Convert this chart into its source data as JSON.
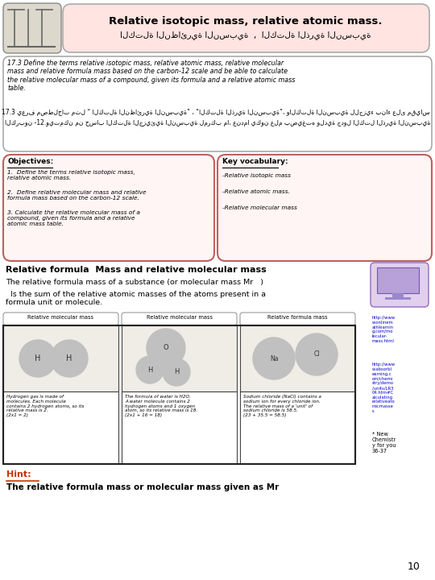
{
  "bg_color": "#ffffff",
  "title_box_bg": "#ffe4e1",
  "title_text": "Relative isotopic mass, relative atomic mass.",
  "title_arabic": "الكتلة النظائرية النسبية  ,  الكتلة الذرية النسبية",
  "define_text_en": "17.3 Define the terms relative isotopic mass, relative atomic mass, relative molecular\nmass and relative formula mass based on the carbon-12 scale and be able to calculate\nthe relative molecular mass of a compound, given its formula and a relative atomic mass\ntable.",
  "define_text_ar": "17.3 يعرف مصطلحات مثل “ الكتلة النظائرية النسبية” ، “الكتلة الذرية النسبية”، والكتلة النسبية للجزيء بناء على مقياس",
  "define_text_ar2": "الكربون -12.ويتمكن من حساب الكتلة الجزيئية النسبية لمركب ما، عندما يكون علم بصيغته ولدية جدول الكتل الذرية النسبية",
  "obj_box_bg": "#fff5f5",
  "obj_box_border": "#c06060",
  "obj_title": "Objectives:",
  "obj_items": [
    "1.  Define the terms relative isotopic mass,\nrelative atomic mass.",
    "2.  Define relative molecular mass and relative\nformula mass based on the carbon-12 scale.",
    "3. Calculate the relative molecular mass of a\ncompound, given its formula and a relative\natomic mass table."
  ],
  "key_title": "Key vocabulary:",
  "key_items": [
    "-Relative isotopic mass",
    "-Relative atomic mass.",
    "-Relative molecular mass"
  ],
  "formula_title": "Relative formula  Mass and relative molecular mass",
  "formula_text1": "The relative formula mass of a substance (or molecular mass Mr   )",
  "formula_text2": "  Is the sum of the relative atomic masses of the atoms present in a\nformula unit or molecule.",
  "img_labels": [
    "Relative molecular mass",
    "Relative molecular mass",
    "Relative formula mass"
  ],
  "img_captions": [
    "Hydrogen gas is made of\nmolecules. Each molecule\ncontains 2 hydrogen atoms, so its\nrelative mass is 2.\n(2x1 = 2)",
    "The formula of water is H2O.\nA water molecule contains 2\nhydrogen atoms and 1 oxygen\natom, so its relative mass is 18.\n(2x1 + 16 = 18)",
    "Sodium chloride (NaCl) contains a\nsodium ion for every chloride ion.\nThe relative mass of a 'unit' of\nsodium chloride is 58.5.\n(23 + 35.5 = 58.5)"
  ],
  "hint_label": "Hint:",
  "hint_text": "The relative formula mass or molecular mass given as Mr",
  "sidebar_links_1": "http://www\nw.onlinem\nathlearnin\ng.com/mo\nlecular-\nmass.html",
  "sidebar_links_2": "http://www\nw.absorbl\nearning.c\nom/chemi\nstry/demo\n/units/LR3\n04.htm#C\nalculating\nrelativeato\nmicmasse\ns",
  "sidebar_note": "* New\nChemistr\ny for you\n36-37",
  "page_num": "10"
}
